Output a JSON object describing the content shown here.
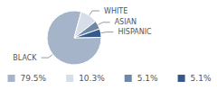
{
  "chart_data": {
    "type": "pie",
    "categories": [
      "BLACK",
      "WHITE",
      "ASIAN",
      "HISPANIC"
    ],
    "values": [
      79.5,
      10.3,
      5.1,
      5.1
    ],
    "value_labels": [
      "79.5%",
      "10.3%",
      "5.1%",
      "5.1%"
    ],
    "colors": [
      "#a5b4c9",
      "#d6dee9",
      "#6f88a8",
      "#37598a"
    ],
    "legend": "bottom"
  }
}
